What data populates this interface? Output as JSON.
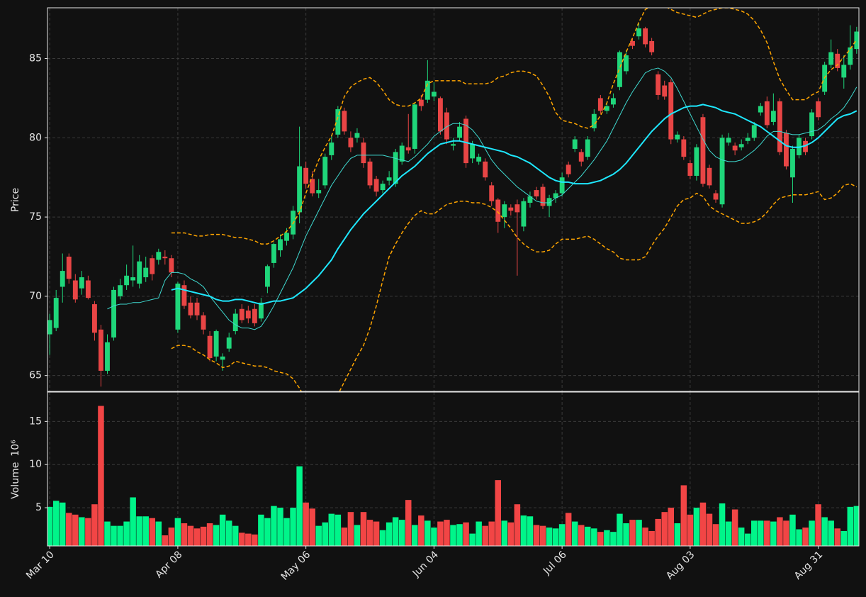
{
  "chart_data": {
    "type": "candlestick",
    "ylabel": "Price",
    "volume_label": "Volume",
    "volume_multiplier_label": "10⁶",
    "categories": [
      "Mar 10",
      null,
      null,
      null,
      null,
      null,
      null,
      null,
      null,
      null,
      null,
      null,
      null,
      null,
      null,
      null,
      null,
      null,
      null,
      null,
      "Apr 08",
      null,
      null,
      null,
      null,
      null,
      null,
      null,
      null,
      null,
      null,
      null,
      null,
      null,
      null,
      null,
      null,
      null,
      null,
      null,
      "May 06",
      null,
      null,
      null,
      null,
      null,
      null,
      null,
      null,
      null,
      null,
      null,
      null,
      null,
      null,
      null,
      null,
      null,
      null,
      null,
      "Jun 04",
      null,
      null,
      null,
      null,
      null,
      null,
      null,
      null,
      null,
      null,
      null,
      null,
      null,
      null,
      null,
      null,
      null,
      null,
      null,
      "Jul 06",
      null,
      null,
      null,
      null,
      null,
      null,
      null,
      null,
      null,
      null,
      null,
      null,
      null,
      null,
      null,
      null,
      null,
      null,
      null,
      "Aug 03",
      null,
      null,
      null,
      null,
      null,
      null,
      null,
      null,
      null,
      null,
      null,
      null,
      null,
      null,
      null,
      null,
      null,
      null,
      null,
      "Aug 31",
      null,
      null,
      null,
      null,
      null,
      null
    ],
    "open": [
      67.6,
      68.0,
      70.6,
      72.5,
      71.0,
      70.5,
      71.0,
      69.5,
      67.9,
      65.3,
      67.4,
      70.0,
      70.7,
      71.0,
      70.8,
      71.2,
      72.4,
      72.3,
      72.5,
      72.4,
      67.9,
      70.7,
      69.6,
      69.6,
      68.8,
      67.5,
      66.2,
      66.0,
      66.7,
      67.8,
      69.2,
      69.1,
      69.2,
      68.6,
      70.6,
      72.1,
      72.9,
      73.5,
      73.9,
      75.3,
      78.1,
      77.4,
      76.5,
      77.0,
      78.9,
      80.2,
      81.7,
      80.0,
      80.0,
      79.7,
      78.5,
      77.4,
      76.7,
      77.3,
      77.1,
      78.5,
      79.4,
      79.3,
      82.4,
      82.4,
      82.6,
      82.5,
      81.6,
      79.5,
      80.0,
      81.2,
      78.7,
      78.5,
      78.5,
      77.0,
      76.1,
      75.0,
      75.6,
      75.8,
      74.4,
      75.9,
      76.7,
      76.9,
      75.7,
      76.2,
      76.5,
      78.3,
      79.3,
      79.1,
      78.8,
      80.6,
      82.5,
      81.7,
      82.1,
      83.2,
      84.2,
      86.1,
      86.4,
      86.9,
      86.1,
      84.0,
      83.3,
      83.5,
      79.9,
      79.9,
      78.4,
      77.6,
      81.3,
      78.1,
      76.5,
      75.8,
      79.7,
      79.5,
      79.4,
      79.8,
      80.0,
      81.6,
      82.3,
      81.0,
      82.3,
      80.3,
      77.5,
      78.9,
      79.8,
      80.1,
      82.3,
      82.9,
      84.6,
      85.3,
      83.8,
      84.6,
      85.6
    ],
    "high": [
      68.9,
      70.4,
      72.7,
      72.7,
      71.4,
      71.6,
      71.3,
      69.7,
      68.2,
      67.6,
      70.6,
      71.1,
      72.0,
      73.2,
      72.6,
      72.5,
      72.6,
      73.0,
      72.9,
      72.6,
      70.9,
      71.0,
      70.0,
      69.9,
      69.0,
      67.8,
      67.9,
      66.4,
      67.7,
      69.2,
      69.5,
      69.4,
      69.5,
      69.9,
      72.0,
      73.4,
      73.9,
      74.3,
      75.7,
      80.7,
      78.5,
      77.9,
      77.4,
      79.0,
      80.2,
      82.0,
      81.9,
      80.4,
      80.6,
      80.0,
      78.7,
      77.6,
      77.3,
      77.9,
      79.3,
      79.7,
      81.5,
      82.2,
      82.7,
      84.9,
      83.5,
      82.6,
      81.9,
      80.0,
      81.0,
      81.4,
      79.8,
      79.0,
      78.7,
      77.2,
      76.2,
      76.0,
      75.8,
      76.1,
      76.2,
      76.6,
      76.9,
      77.1,
      76.4,
      76.7,
      77.8,
      78.5,
      80.1,
      79.3,
      80.1,
      81.8,
      82.7,
      82.3,
      82.8,
      85.5,
      85.5,
      86.3,
      87.2,
      87.0,
      86.3,
      84.2,
      83.6,
      83.7,
      80.4,
      80.1,
      78.6,
      79.6,
      81.5,
      78.3,
      76.7,
      80.2,
      80.3,
      79.7,
      79.9,
      80.3,
      81.0,
      82.2,
      82.6,
      82.8,
      82.5,
      80.5,
      79.5,
      80.2,
      80.0,
      81.8,
      82.5,
      84.8,
      86.2,
      85.6,
      85.2,
      87.1,
      87.0
    ],
    "low": [
      66.3,
      67.8,
      69.6,
      70.8,
      69.6,
      70.1,
      69.8,
      67.2,
      64.3,
      65.1,
      67.2,
      69.8,
      70.4,
      70.6,
      70.5,
      70.9,
      71.0,
      72.0,
      72.0,
      71.2,
      67.7,
      69.2,
      68.6,
      68.5,
      67.6,
      65.9,
      65.9,
      65.3,
      66.5,
      67.6,
      68.3,
      68.3,
      68.1,
      68.4,
      70.2,
      71.8,
      72.5,
      73.2,
      73.6,
      74.6,
      76.8,
      76.3,
      76.2,
      76.8,
      78.6,
      80.0,
      80.2,
      79.1,
      79.7,
      78.1,
      76.8,
      76.3,
      76.5,
      77.0,
      76.9,
      78.3,
      79.0,
      79.0,
      81.7,
      82.2,
      82.3,
      80.2,
      79.6,
      79.2,
      79.8,
      78.1,
      78.4,
      78.3,
      77.3,
      75.7,
      74.0,
      74.3,
      75.1,
      71.3,
      74.1,
      75.6,
      76.1,
      75.5,
      75.0,
      75.9,
      76.3,
      77.5,
      79.1,
      78.2,
      78.6,
      80.4,
      81.5,
      81.5,
      81.9,
      83.0,
      84.0,
      85.6,
      86.2,
      85.7,
      85.2,
      82.4,
      82.4,
      79.6,
      79.7,
      78.6,
      77.4,
      77.3,
      76.9,
      76.8,
      75.9,
      75.6,
      79.5,
      78.9,
      79.2,
      79.6,
      79.8,
      81.4,
      80.6,
      80.8,
      78.9,
      78.0,
      75.9,
      78.7,
      78.9,
      79.9,
      81.1,
      82.7,
      84.4,
      84.2,
      83.1,
      84.3,
      85.3
    ],
    "close": [
      68.5,
      69.9,
      71.6,
      71.1,
      69.8,
      71.2,
      69.9,
      67.7,
      65.3,
      67.1,
      70.4,
      70.7,
      71.3,
      71.2,
      72.2,
      71.8,
      71.4,
      72.8,
      72.4,
      71.5,
      70.8,
      69.4,
      68.8,
      68.8,
      67.9,
      66.1,
      67.8,
      66.2,
      67.4,
      68.9,
      68.5,
      68.6,
      68.3,
      69.6,
      71.9,
      73.3,
      73.6,
      74.0,
      75.4,
      78.2,
      77.1,
      76.5,
      76.7,
      78.8,
      79.7,
      81.8,
      80.4,
      79.4,
      80.3,
      78.4,
      77.0,
      76.6,
      77.1,
      77.5,
      79.1,
      79.5,
      79.2,
      82.1,
      82.0,
      83.6,
      82.9,
      80.4,
      79.9,
      79.6,
      80.7,
      78.4,
      79.6,
      78.8,
      77.5,
      76.0,
      74.7,
      75.8,
      75.4,
      75.3,
      76.0,
      76.3,
      76.3,
      75.7,
      76.2,
      76.5,
      77.5,
      77.7,
      79.9,
      78.5,
      79.9,
      81.5,
      81.7,
      82.0,
      82.5,
      85.4,
      85.2,
      85.8,
      86.9,
      85.9,
      85.4,
      82.7,
      82.6,
      79.9,
      80.2,
      78.8,
      77.6,
      79.4,
      77.1,
      77.0,
      76.1,
      80.0,
      80.0,
      79.2,
      79.6,
      80.0,
      80.8,
      82.0,
      80.8,
      81.7,
      79.1,
      78.2,
      79.3,
      80.0,
      79.1,
      81.6,
      81.3,
      84.6,
      85.4,
      84.4,
      84.6,
      85.7,
      86.7
    ],
    "volume": [
      5.1,
      5.8,
      5.6,
      4.4,
      4.2,
      3.9,
      3.8,
      5.4,
      16.8,
      3.4,
      2.9,
      2.9,
      3.4,
      6.2,
      4.0,
      4.0,
      3.8,
      3.4,
      1.8,
      2.7,
      3.8,
      3.2,
      2.9,
      2.6,
      2.8,
      3.2,
      3.0,
      4.2,
      3.5,
      2.9,
      2.1,
      2.0,
      1.9,
      4.2,
      3.8,
      5.2,
      5.0,
      3.8,
      5.0,
      9.8,
      5.6,
      4.9,
      2.9,
      3.3,
      4.3,
      4.2,
      2.7,
      4.5,
      3.0,
      4.5,
      3.6,
      3.4,
      2.4,
      3.3,
      3.9,
      3.6,
      5.9,
      3.0,
      4.1,
      3.5,
      2.7,
      3.4,
      3.6,
      3.0,
      3.1,
      3.3,
      2.0,
      3.4,
      2.9,
      3.4,
      8.2,
      3.5,
      3.3,
      5.4,
      4.1,
      4.0,
      3.0,
      2.9,
      2.7,
      2.6,
      3.1,
      4.4,
      3.4,
      3.0,
      2.8,
      2.6,
      2.2,
      2.4,
      2.2,
      4.3,
      3.2,
      3.6,
      3.6,
      2.7,
      2.3,
      3.7,
      4.5,
      5.0,
      3.2,
      7.6,
      4.2,
      5.0,
      5.6,
      4.3,
      3.1,
      5.5,
      3.4,
      4.8,
      2.7,
      2.0,
      3.5,
      3.5,
      3.5,
      3.4,
      3.9,
      3.5,
      4.2,
      2.5,
      2.7,
      3.5,
      5.4,
      3.9,
      3.5,
      2.6,
      2.3,
      5.1,
      5.2
    ],
    "overlays": [
      {
        "color": "#3fd9d0",
        "width": 1,
        "dash": false,
        "values": [
          null,
          null,
          null,
          null,
          null,
          null,
          null,
          null,
          null,
          69.2,
          69.4,
          69.5,
          69.5,
          69.6,
          69.6,
          69.7,
          69.8,
          69.9,
          71.0,
          71.5,
          71.5,
          71.4,
          71.1,
          70.9,
          70.6,
          70.0,
          69.5,
          69.0,
          68.5,
          68.2,
          68.0,
          68.0,
          67.9,
          68.1,
          68.7,
          69.4,
          70.2,
          71.0,
          71.8,
          72.8,
          73.8,
          74.6,
          75.4,
          76.2,
          77.0,
          77.6,
          78.2,
          78.7,
          78.9,
          78.9,
          78.9,
          78.9,
          78.9,
          78.8,
          78.7,
          78.6,
          78.5,
          78.8,
          79.2,
          79.6,
          80.1,
          80.4,
          80.7,
          80.9,
          80.9,
          80.8,
          80.5,
          80.0,
          79.3,
          78.6,
          78.1,
          77.7,
          77.3,
          76.9,
          76.6,
          76.3,
          76.0,
          75.9,
          75.9,
          76.2,
          76.4,
          76.8,
          77.2,
          77.6,
          78.1,
          78.6,
          79.2,
          79.8,
          80.6,
          81.4,
          82.2,
          82.9,
          83.5,
          84.1,
          84.3,
          84.4,
          84.2,
          83.8,
          83.1,
          82.3,
          81.5,
          80.7,
          79.9,
          79.2,
          78.8,
          78.6,
          78.5,
          78.5,
          78.6,
          78.9,
          79.2,
          79.6,
          80.1,
          80.4,
          80.4,
          80.3,
          80.2,
          80.2,
          80.3,
          80.4,
          80.5,
          80.8,
          81.2,
          81.5,
          81.9,
          82.5,
          83.2
        ]
      },
      {
        "color": "#1ee8ff",
        "width": 2,
        "dash": false,
        "values": [
          null,
          null,
          null,
          null,
          null,
          null,
          null,
          null,
          null,
          null,
          null,
          null,
          null,
          null,
          null,
          null,
          null,
          null,
          null,
          70.4,
          70.5,
          70.4,
          70.3,
          70.2,
          70.1,
          70.0,
          69.8,
          69.7,
          69.7,
          69.8,
          69.8,
          69.7,
          69.6,
          69.5,
          69.6,
          69.7,
          69.7,
          69.8,
          69.9,
          70.2,
          70.5,
          70.9,
          71.3,
          71.8,
          72.3,
          73.0,
          73.6,
          74.2,
          74.7,
          75.2,
          75.6,
          76.0,
          76.4,
          76.8,
          77.2,
          77.6,
          77.9,
          78.2,
          78.6,
          79.0,
          79.3,
          79.6,
          79.7,
          79.8,
          79.8,
          79.7,
          79.6,
          79.5,
          79.4,
          79.3,
          79.2,
          79.1,
          78.9,
          78.8,
          78.6,
          78.4,
          78.1,
          77.8,
          77.5,
          77.3,
          77.2,
          77.2,
          77.1,
          77.1,
          77.1,
          77.2,
          77.3,
          77.5,
          77.7,
          78.0,
          78.4,
          78.9,
          79.4,
          79.9,
          80.4,
          80.8,
          81.2,
          81.5,
          81.7,
          81.9,
          82.0,
          82.0,
          82.1,
          82.0,
          81.9,
          81.7,
          81.6,
          81.5,
          81.3,
          81.1,
          80.9,
          80.7,
          80.4,
          80.1,
          79.8,
          79.5,
          79.4,
          79.4,
          79.5,
          79.7,
          80.0,
          80.4,
          80.8,
          81.2,
          81.4,
          81.5,
          81.7
        ]
      },
      {
        "color": "#ffa500",
        "width": 1.5,
        "dash": true,
        "values": [
          null,
          null,
          null,
          null,
          null,
          null,
          null,
          null,
          null,
          null,
          null,
          null,
          null,
          null,
          null,
          null,
          null,
          null,
          null,
          74.0,
          74.0,
          74.0,
          73.9,
          73.8,
          73.8,
          73.9,
          73.9,
          73.9,
          73.8,
          73.7,
          73.7,
          73.6,
          73.5,
          73.3,
          73.3,
          73.5,
          73.8,
          74.1,
          74.6,
          75.3,
          76.5,
          77.6,
          78.6,
          79.4,
          80.1,
          81.3,
          82.6,
          83.2,
          83.5,
          83.7,
          83.8,
          83.5,
          83.0,
          82.4,
          82.1,
          82.0,
          82.0,
          82.2,
          82.5,
          83.4,
          83.6,
          83.6,
          83.6,
          83.6,
          83.6,
          83.4,
          83.4,
          83.4,
          83.4,
          83.5,
          83.8,
          83.9,
          84.1,
          84.2,
          84.2,
          84.1,
          83.9,
          83.3,
          82.6,
          81.6,
          81.1,
          81.0,
          80.9,
          80.7,
          80.6,
          80.8,
          81.4,
          82.2,
          83.4,
          84.4,
          85.4,
          86.3,
          87.3,
          88.1,
          88.3,
          88.3,
          88.3,
          88.1,
          87.9,
          87.8,
          87.7,
          87.6,
          87.8,
          88.0,
          88.1,
          88.2,
          88.2,
          88.1,
          88.0,
          87.8,
          87.4,
          86.8,
          86.0,
          84.8,
          83.7,
          83.0,
          82.4,
          82.4,
          82.4,
          82.7,
          82.9,
          83.8,
          84.3,
          84.6,
          85.1,
          85.6,
          86.2
        ]
      },
      {
        "color": "#ffa500",
        "width": 1.5,
        "dash": true,
        "values": [
          null,
          null,
          null,
          null,
          null,
          null,
          null,
          null,
          null,
          null,
          null,
          null,
          null,
          null,
          null,
          null,
          null,
          null,
          null,
          66.7,
          66.9,
          66.9,
          66.8,
          66.5,
          66.3,
          66.0,
          65.8,
          65.5,
          65.6,
          65.9,
          65.8,
          65.7,
          65.6,
          65.6,
          65.5,
          65.3,
          65.2,
          65.1,
          64.8,
          64.2,
          63.5,
          63.0,
          62.6,
          62.7,
          63.0,
          63.8,
          64.6,
          65.4,
          66.2,
          66.9,
          68.0,
          69.4,
          71.0,
          72.5,
          73.3,
          74.0,
          74.6,
          75.1,
          75.4,
          75.2,
          75.2,
          75.5,
          75.8,
          75.9,
          76.0,
          76.0,
          75.9,
          75.9,
          75.8,
          75.6,
          75.3,
          74.8,
          74.3,
          73.7,
          73.3,
          73.0,
          72.8,
          72.8,
          72.9,
          73.3,
          73.6,
          73.6,
          73.6,
          73.7,
          73.8,
          73.6,
          73.3,
          73.0,
          72.8,
          72.4,
          72.3,
          72.3,
          72.3,
          72.5,
          73.2,
          73.8,
          74.3,
          75.0,
          75.7,
          76.1,
          76.2,
          76.5,
          76.3,
          75.7,
          75.4,
          75.2,
          75.0,
          74.8,
          74.6,
          74.6,
          74.7,
          74.9,
          75.3,
          75.8,
          76.2,
          76.3,
          76.4,
          76.4,
          76.4,
          76.5,
          76.6,
          76.1,
          76.2,
          76.5,
          77.0,
          77.1,
          76.9
        ]
      }
    ],
    "up_color": "#1fd67a",
    "down_color": "#e84545",
    "volume_up_color": "#00f58a",
    "volume_down_color": "#f24545",
    "xlim": [
      -0.35,
      126.35
    ],
    "ylim": [
      64.0,
      88.2
    ],
    "yticks": [
      65,
      70,
      75,
      80,
      85
    ],
    "volume_ylim": [
      0.57,
      18.4
    ],
    "volume_yticks": [
      5,
      10,
      15
    ],
    "grid": true
  }
}
